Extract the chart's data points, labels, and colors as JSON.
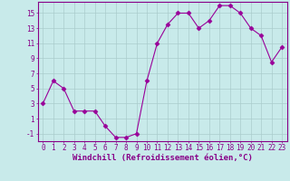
{
  "x": [
    0,
    1,
    2,
    3,
    4,
    5,
    6,
    7,
    8,
    9,
    10,
    11,
    12,
    13,
    14,
    15,
    16,
    17,
    18,
    19,
    20,
    21,
    22,
    23
  ],
  "y": [
    3,
    6,
    5,
    2,
    2,
    2,
    0,
    -1.5,
    -1.5,
    -1,
    6,
    11,
    13.5,
    15,
    15,
    13,
    14,
    16,
    16,
    15,
    13,
    12,
    8.5,
    10.5
  ],
  "line_color": "#990099",
  "marker": "D",
  "marker_size": 2.5,
  "bg_color": "#c8eaea",
  "grid_color": "#aacccc",
  "xlabel": "Windchill (Refroidissement éolien,°C)",
  "ylim": [
    -2,
    16.5
  ],
  "yticks": [
    -1,
    1,
    3,
    5,
    7,
    9,
    11,
    13,
    15
  ],
  "xlim": [
    -0.5,
    23.5
  ],
  "xticks": [
    0,
    1,
    2,
    3,
    4,
    5,
    6,
    7,
    8,
    9,
    10,
    11,
    12,
    13,
    14,
    15,
    16,
    17,
    18,
    19,
    20,
    21,
    22,
    23
  ],
  "spine_color": "#880088",
  "tick_color": "#880088",
  "label_color": "#880088",
  "label_fontsize": 6.5,
  "tick_fontsize": 5.5
}
